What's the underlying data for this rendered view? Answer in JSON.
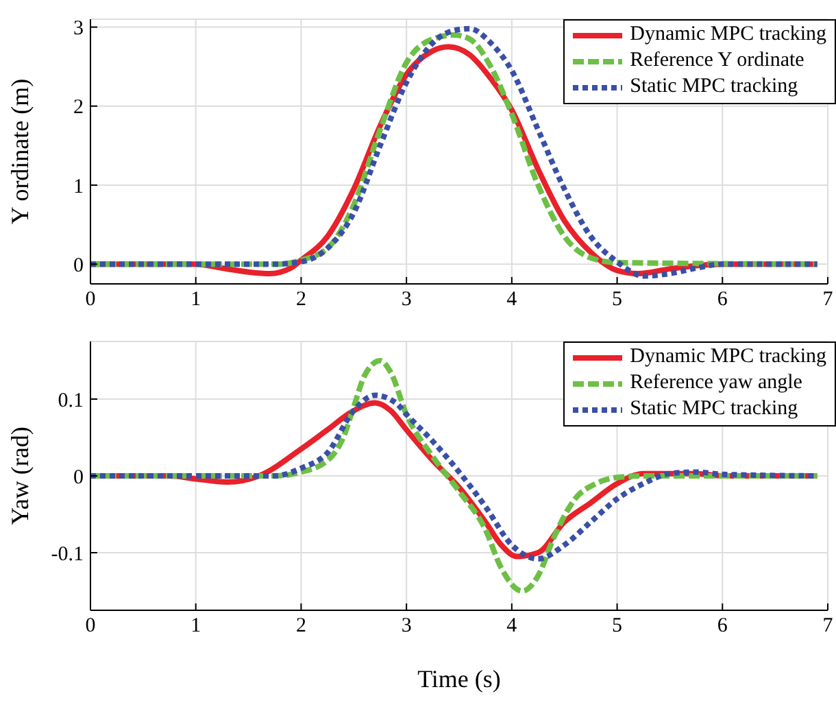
{
  "chart_data": [
    {
      "type": "line",
      "ylabel": "Y ordinate (m)",
      "xlim": [
        0,
        7
      ],
      "xticks": [
        0,
        1,
        2,
        3,
        4,
        5,
        6,
        7
      ],
      "ylim": [
        -0.25,
        3.1
      ],
      "yticks": [
        0,
        1,
        2,
        3
      ],
      "grid": true,
      "legend": "top right",
      "marker": "none",
      "series": [
        {
          "name": "Dynamic MPC tracking",
          "color": "#e8212a",
          "line_style": "solid",
          "x": [
            0,
            0.5,
            1,
            1.25,
            1.5,
            1.7,
            1.9,
            2,
            2.25,
            2.5,
            2.75,
            3,
            3.25,
            3.4,
            3.6,
            3.8,
            4,
            4.25,
            4.5,
            4.75,
            5,
            5.2,
            5.5,
            6,
            6.9
          ],
          "values": [
            0,
            0,
            0,
            -0.05,
            -0.1,
            -0.12,
            -0.05,
            0.05,
            0.35,
            0.95,
            1.75,
            2.4,
            2.7,
            2.75,
            2.65,
            2.35,
            1.95,
            1.2,
            0.55,
            0.15,
            -0.08,
            -0.12,
            -0.06,
            0,
            0
          ]
        },
        {
          "name": "Reference Y ordinate",
          "color": "#6dbf45",
          "line_style": "dashed",
          "x": [
            0,
            1,
            1.8,
            2,
            2.25,
            2.5,
            2.75,
            3,
            3.25,
            3.45,
            3.6,
            3.8,
            4,
            4.25,
            4.5,
            4.75,
            5,
            6.9
          ],
          "values": [
            0,
            0,
            0,
            0.05,
            0.2,
            0.75,
            1.7,
            2.55,
            2.85,
            2.9,
            2.85,
            2.5,
            1.9,
            1,
            0.35,
            0.08,
            0.02,
            0
          ]
        },
        {
          "name": "Static MPC tracking",
          "color": "#3a4fa6",
          "line_style": "dotted",
          "x": [
            0,
            1,
            1.75,
            2,
            2.25,
            2.5,
            2.75,
            3,
            3.25,
            3.5,
            3.6,
            3.8,
            4,
            4.25,
            4.5,
            4.75,
            5,
            5.25,
            5.5,
            5.75,
            6,
            6.9
          ],
          "values": [
            0,
            0,
            0,
            0.03,
            0.2,
            0.65,
            1.5,
            2.3,
            2.8,
            2.97,
            2.98,
            2.8,
            2.45,
            1.7,
            0.95,
            0.35,
            0.03,
            -0.15,
            -0.12,
            -0.05,
            0,
            0
          ]
        }
      ]
    },
    {
      "type": "line",
      "xlabel": "Time (s)",
      "ylabel": "Yaw (rad)",
      "xlim": [
        0,
        7
      ],
      "xticks": [
        0,
        1,
        2,
        3,
        4,
        5,
        6,
        7
      ],
      "ylim": [
        -0.175,
        0.175
      ],
      "yticks": [
        -0.1,
        0,
        0.1
      ],
      "grid": true,
      "legend": "top right",
      "marker": "none",
      "series": [
        {
          "name": "Dynamic MPC tracking",
          "color": "#e8212a",
          "line_style": "solid",
          "x": [
            0,
            0.75,
            1,
            1.3,
            1.6,
            2,
            2.25,
            2.5,
            2.7,
            2.85,
            3,
            3.25,
            3.5,
            3.75,
            3.9,
            4.05,
            4.25,
            4.5,
            4.75,
            5,
            5.25,
            5.75,
            6,
            6.9
          ],
          "values": [
            0,
            0,
            -0.004,
            -0.008,
            0,
            0.035,
            0.06,
            0.085,
            0.095,
            0.085,
            0.06,
            0.02,
            -0.015,
            -0.06,
            -0.09,
            -0.105,
            -0.1,
            -0.06,
            -0.035,
            -0.01,
            0.003,
            0.003,
            0,
            0
          ]
        },
        {
          "name": "Reference yaw angle",
          "color": "#6dbf45",
          "line_style": "dashed",
          "x": [
            0,
            1,
            1.75,
            2,
            2.25,
            2.4,
            2.5,
            2.6,
            2.75,
            2.85,
            3,
            3.25,
            3.5,
            3.75,
            3.9,
            4.1,
            4.25,
            4.4,
            4.6,
            4.8,
            5,
            5.25,
            6.9
          ],
          "values": [
            0,
            0,
            0,
            0.005,
            0.02,
            0.05,
            0.09,
            0.13,
            0.15,
            0.135,
            0.08,
            0.025,
            -0.02,
            -0.07,
            -0.12,
            -0.15,
            -0.13,
            -0.08,
            -0.03,
            -0.01,
            -0.002,
            0,
            0
          ]
        },
        {
          "name": "Static MPC tracking",
          "color": "#3a4fa6",
          "line_style": "dotted",
          "x": [
            0,
            1,
            1.75,
            2,
            2.25,
            2.5,
            2.7,
            2.9,
            3,
            3.25,
            3.5,
            3.75,
            4,
            4.25,
            4.5,
            4.75,
            5,
            5.25,
            5.5,
            5.75,
            6,
            6.9
          ],
          "values": [
            0,
            0,
            0,
            0.01,
            0.03,
            0.085,
            0.105,
            0.095,
            0.08,
            0.045,
            0.005,
            -0.04,
            -0.09,
            -0.108,
            -0.09,
            -0.06,
            -0.03,
            -0.01,
            0.003,
            0.005,
            0.002,
            0
          ]
        }
      ]
    }
  ]
}
